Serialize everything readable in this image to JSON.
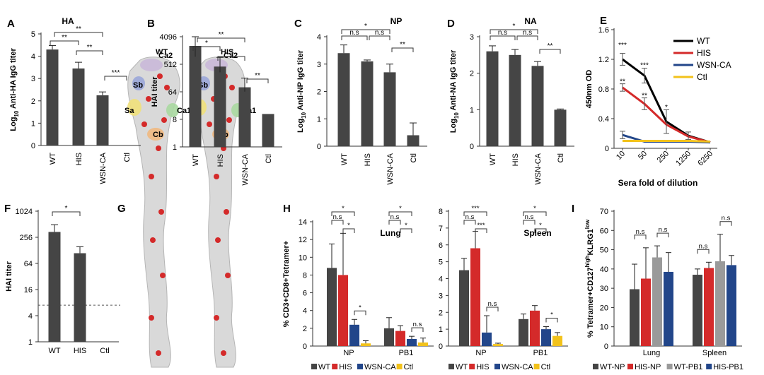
{
  "colors": {
    "dark": "#454545",
    "red": "#d42a2a",
    "blue": "#22468a",
    "gray": "#9a9a9a",
    "yellow": "#f2c21b",
    "black": "#000000"
  },
  "chart_data": [
    {
      "id": "A",
      "type": "bar",
      "panel_label": "A",
      "title": "HA",
      "ylabel": "Log10 Anti-HA IgG titer",
      "ylabel_parts": [
        "Log",
        "10",
        " Anti-HA IgG titer"
      ],
      "scale": "linear",
      "categories": [
        "WT",
        "HIS",
        "WSN-CA",
        "Ctl"
      ],
      "values": [
        4.3,
        3.45,
        2.25,
        0
      ],
      "errors": [
        0.18,
        0.28,
        0.15,
        0
      ],
      "ylim": [
        0,
        5
      ],
      "yticks": [
        0,
        1,
        2,
        3,
        4,
        5
      ],
      "ytick_labels": [
        "0",
        "1",
        "2",
        "3",
        "4",
        "5"
      ],
      "significance": [
        {
          "a": 0,
          "b": 1,
          "label": "**"
        },
        {
          "a": 0,
          "b": 2,
          "label": "**"
        },
        {
          "a": 1,
          "b": 2,
          "label": "**"
        },
        {
          "a": 2,
          "b": 3,
          "label": "***"
        }
      ]
    },
    {
      "id": "B",
      "type": "bar",
      "panel_label": "B",
      "title": "",
      "ylabel": "HAI titer",
      "scale": "log2",
      "categories": [
        "WT",
        "HIS",
        "WSN-CA",
        "Ctl"
      ],
      "values": [
        2048,
        430,
        90,
        12
      ],
      "errors": [
        [
          900,
          2048
        ],
        [
          280,
          430
        ],
        [
          65,
          90
        ],
        [
          0,
          0
        ]
      ],
      "ylim": [
        1,
        4096
      ],
      "yticks": [
        1,
        8,
        64,
        512,
        4096
      ],
      "ytick_labels": [
        "1",
        "8",
        "64",
        "512",
        "4096"
      ],
      "significance": [
        {
          "a": 0,
          "b": 1,
          "label": "*"
        },
        {
          "a": 0,
          "b": 2,
          "label": "**"
        },
        {
          "a": 1,
          "b": 2,
          "label": "*"
        },
        {
          "a": 2,
          "b": 3,
          "label": "**"
        }
      ]
    },
    {
      "id": "C",
      "type": "bar",
      "panel_label": "C",
      "title": "NP",
      "ylabel": "Log10 Anti-NP IgG titer",
      "ylabel_parts": [
        "Log",
        "10",
        " Anti-NP IgG titer"
      ],
      "scale": "linear",
      "categories": [
        "WT",
        "HIS",
        "WSN-CA",
        "Ctl"
      ],
      "values": [
        3.4,
        3.1,
        2.7,
        0.4
      ],
      "errors": [
        0.3,
        0.05,
        0.3,
        0.45
      ],
      "ylim": [
        0,
        4
      ],
      "yticks": [
        0,
        1,
        2,
        3,
        4
      ],
      "ytick_labels": [
        "0",
        "1",
        "2",
        "3",
        "4"
      ],
      "significance": [
        {
          "a": 0,
          "b": 1,
          "label": "n.s"
        },
        {
          "a": 1,
          "b": 2,
          "label": "n.s"
        },
        {
          "a": 0,
          "b": 2,
          "label": "*"
        },
        {
          "a": 2,
          "b": 3,
          "label": "**"
        }
      ]
    },
    {
      "id": "D",
      "type": "bar",
      "panel_label": "D",
      "title": "NA",
      "ylabel": "Log10 Anti-NA IgG titer",
      "ylabel_parts": [
        "Log",
        "10",
        " Anti-NA IgG titer"
      ],
      "scale": "linear",
      "categories": [
        "WT",
        "HIS",
        "WSN-CA",
        "Ctl"
      ],
      "values": [
        2.6,
        2.5,
        2.2,
        1.0
      ],
      "errors": [
        0.15,
        0.15,
        0.12,
        0.02
      ],
      "ylim": [
        0,
        3
      ],
      "yticks": [
        0,
        1,
        2,
        3
      ],
      "ytick_labels": [
        "0",
        "1",
        "2",
        "3"
      ],
      "significance": [
        {
          "a": 0,
          "b": 1,
          "label": "n.s"
        },
        {
          "a": 1,
          "b": 2,
          "label": "n.s"
        },
        {
          "a": 0,
          "b": 2,
          "label": "*"
        },
        {
          "a": 2,
          "b": 3,
          "label": "**"
        }
      ]
    },
    {
      "id": "E",
      "type": "line",
      "panel_label": "E",
      "title": "",
      "xlabel": "Sera fold of dilution",
      "ylabel": "450nm OD",
      "x": [
        "10",
        "50",
        "250",
        "1250",
        "6250"
      ],
      "ylim": [
        0,
        1.6
      ],
      "yticks": [
        0,
        0.4,
        0.8,
        1.2,
        1.6
      ],
      "ytick_labels": [
        "0",
        "0.4",
        "0.8",
        "1.2",
        "1.6"
      ],
      "series": [
        {
          "name": "WT",
          "color_key": "black",
          "values": [
            1.2,
            0.98,
            0.36,
            0.17,
            0.08
          ]
        },
        {
          "name": "HIS",
          "color_key": "red",
          "values": [
            0.82,
            0.6,
            0.32,
            0.16,
            0.08
          ]
        },
        {
          "name": "WSN-CA",
          "color_key": "blue",
          "values": [
            0.18,
            0.09,
            0.09,
            0.09,
            0.08
          ],
          "values_end": 1
        },
        {
          "name": "Ctl",
          "color_key": "yellow",
          "values": [
            0.1,
            0.1,
            0.1,
            0.1,
            0.09
          ]
        }
      ],
      "errors": [
        {
          "x": 0,
          "y": 1.2,
          "e": 0.08
        },
        {
          "x": 0,
          "y": 0.82,
          "e": 0.05
        },
        {
          "x": 1,
          "y": 0.98,
          "e": 0.1
        },
        {
          "x": 1,
          "y": 0.6,
          "e": 0.08
        },
        {
          "x": 2,
          "y": 0.36,
          "e": 0.16
        },
        {
          "x": 3,
          "y": 0.17,
          "e": 0.05
        },
        {
          "x": 0,
          "y": 0.18,
          "e": 0.05
        }
      ],
      "annotations": [
        {
          "x": 0,
          "y": 1.4,
          "label": "***"
        },
        {
          "x": 0,
          "y": 0.91,
          "label": "**"
        },
        {
          "x": 1,
          "y": 1.13,
          "label": "***"
        },
        {
          "x": 1,
          "y": 0.72,
          "label": "**"
        },
        {
          "x": 2,
          "y": 0.56,
          "label": "*"
        }
      ]
    },
    {
      "id": "F",
      "type": "bar",
      "panel_label": "F",
      "title": "",
      "ylabel": "HAI titer",
      "scale": "log2",
      "categories": [
        "WT",
        "HIS",
        "Ctl"
      ],
      "values": [
        340,
        110,
        1
      ],
      "errors": [
        [
          0,
          160
        ],
        [
          0,
          45
        ],
        [
          0,
          0
        ]
      ],
      "ylim": [
        1,
        1024
      ],
      "yticks": [
        1,
        4,
        16,
        64,
        256,
        1024
      ],
      "ytick_labels": [
        "1",
        "4",
        "16",
        "64",
        "256",
        "1024"
      ],
      "reference_line": 7,
      "significance": [
        {
          "a": 0,
          "b": 1,
          "label": "*"
        }
      ]
    },
    {
      "id": "H1",
      "type": "bar",
      "panel_label": "H",
      "title": "Lung",
      "ylabel": "% CD3+CD8+Tetramer+",
      "groups": [
        "NP",
        "PB1"
      ],
      "series_names": [
        "WT",
        "HIS",
        "WSN-CA",
        "Ctl"
      ],
      "series": [
        {
          "name": "WT",
          "color_key": "dark",
          "values": [
            8.8,
            2.0
          ],
          "errors": [
            2.7,
            1.2
          ]
        },
        {
          "name": "HIS",
          "color_key": "red",
          "values": [
            8.0,
            1.7
          ],
          "errors": [
            4.7,
            0.6
          ]
        },
        {
          "name": "WSN-CA",
          "color_key": "blue",
          "values": [
            2.4,
            0.8
          ],
          "errors": [
            0.6,
            0.3
          ]
        },
        {
          "name": "Ctl",
          "color_key": "yellow",
          "values": [
            0.3,
            0.4
          ],
          "errors": [
            0.3,
            0.5
          ]
        }
      ],
      "ylim": [
        0,
        14
      ],
      "yticks": [
        0,
        2,
        4,
        6,
        8,
        10,
        12,
        14
      ],
      "ytick_labels": [
        "0",
        "2",
        "4",
        "6",
        "8",
        "10",
        "12",
        "14"
      ],
      "significance": [
        {
          "group": 0,
          "a": 0,
          "b": 1,
          "label": "n.s",
          "level": 1
        },
        {
          "group": 0,
          "a": 0,
          "b": 2,
          "label": "*",
          "level": 2
        },
        {
          "group": 0,
          "a": 1,
          "b": 2,
          "label": "*",
          "level": 0
        },
        {
          "group": 0,
          "a": 2,
          "b": 3,
          "label": "*",
          "level": -1
        },
        {
          "group": 1,
          "a": 0,
          "b": 1,
          "label": "n.s",
          "level": 1
        },
        {
          "group": 1,
          "a": 0,
          "b": 2,
          "label": "*",
          "level": 2
        },
        {
          "group": 1,
          "a": 1,
          "b": 2,
          "label": "*",
          "level": 0
        },
        {
          "group": 1,
          "a": 2,
          "b": 3,
          "label": "n.s",
          "level": -1
        }
      ]
    },
    {
      "id": "H2",
      "type": "bar",
      "panel_label": "",
      "title": "Spleen",
      "ylabel": "",
      "groups": [
        "NP",
        "PB1"
      ],
      "series_names": [
        "WT",
        "HIS",
        "WSN-CA",
        "Ctl"
      ],
      "series": [
        {
          "name": "WT",
          "color_key": "dark",
          "values": [
            4.5,
            1.6
          ],
          "errors": [
            0.7,
            0.3
          ]
        },
        {
          "name": "HIS",
          "color_key": "red",
          "values": [
            5.8,
            2.1
          ],
          "errors": [
            1.0,
            0.3
          ]
        },
        {
          "name": "WSN-CA",
          "color_key": "blue",
          "values": [
            0.8,
            1.0
          ],
          "errors": [
            1.0,
            0.15
          ]
        },
        {
          "name": "Ctl",
          "color_key": "yellow",
          "values": [
            0.12,
            0.6
          ],
          "errors": [
            0.05,
            0.2
          ]
        }
      ],
      "ylim": [
        0,
        8
      ],
      "yticks": [
        0,
        1,
        2,
        3,
        4,
        5,
        6,
        7,
        8
      ],
      "ytick_labels": [
        "0",
        "1",
        "2",
        "3",
        "4",
        "5",
        "6",
        "7",
        "8"
      ],
      "significance": [
        {
          "group": 0,
          "a": 0,
          "b": 1,
          "label": "n.s",
          "level": 1
        },
        {
          "group": 0,
          "a": 0,
          "b": 2,
          "label": "***",
          "level": 2
        },
        {
          "group": 0,
          "a": 1,
          "b": 2,
          "label": "***",
          "level": 0
        },
        {
          "group": 0,
          "a": 2,
          "b": 3,
          "label": "n.s",
          "level": -1
        },
        {
          "group": 1,
          "a": 0,
          "b": 1,
          "label": "n.s",
          "level": 1
        },
        {
          "group": 1,
          "a": 0,
          "b": 2,
          "label": "*",
          "level": 2
        },
        {
          "group": 1,
          "a": 1,
          "b": 2,
          "label": "*",
          "level": 0
        },
        {
          "group": 1,
          "a": 2,
          "b": 3,
          "label": "*",
          "level": -1
        }
      ]
    },
    {
      "id": "I",
      "type": "bar",
      "panel_label": "I",
      "title": "",
      "ylabel": "% Tetramer+CD127highKLRG1low",
      "ylabel_parts": [
        "% Tetramer+CD127",
        "high",
        "KLRG1",
        "low"
      ],
      "groups": [
        "Lung",
        "Spleen"
      ],
      "series_names": [
        "WT-NP",
        "HIS-NP",
        "WT-PB1",
        "HIS-PB1"
      ],
      "series": [
        {
          "name": "WT-NP",
          "color_key": "dark",
          "values": [
            29.5,
            37.0
          ],
          "errors": [
            13,
            3
          ]
        },
        {
          "name": "HIS-NP",
          "color_key": "red",
          "values": [
            35.0,
            40.5
          ],
          "errors": [
            16,
            3
          ]
        },
        {
          "name": "WT-PB1",
          "color_key": "gray",
          "values": [
            46.0,
            44.0
          ],
          "errors": [
            6,
            14
          ]
        },
        {
          "name": "HIS-PB1",
          "color_key": "blue",
          "values": [
            38.5,
            42.0
          ],
          "errors": [
            10,
            5
          ]
        }
      ],
      "ylim": [
        0,
        70
      ],
      "yticks": [
        0,
        10,
        20,
        30,
        40,
        50,
        60,
        70
      ],
      "ytick_labels": [
        "0",
        "10",
        "20",
        "30",
        "40",
        "50",
        "60",
        "70"
      ],
      "significance": [
        {
          "group": 0,
          "a": 0,
          "b": 1,
          "label": "n.s"
        },
        {
          "group": 0,
          "a": 2,
          "b": 3,
          "label": "n.s"
        },
        {
          "group": 1,
          "a": 0,
          "b": 1,
          "label": "n.s"
        },
        {
          "group": 1,
          "a": 2,
          "b": 3,
          "label": "n.s"
        }
      ]
    }
  ],
  "panel_G": {
    "label": "G",
    "structures": [
      {
        "title": "WT",
        "sites": [
          "Ca2",
          "Sb",
          "Sa",
          "Ca1",
          "Cb"
        ]
      },
      {
        "title": "HIS",
        "sites": [
          "Ca2",
          "Sb",
          "Sa",
          "Ca1",
          "Cb"
        ]
      }
    ]
  }
}
